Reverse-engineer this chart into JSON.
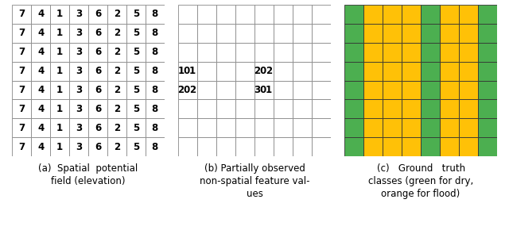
{
  "grid_size": 8,
  "panel_a_values": [
    7,
    4,
    1,
    3,
    6,
    2,
    5,
    8
  ],
  "panel_b_observations": [
    {
      "row": 3,
      "col": 0,
      "val1": "10",
      "val2": "1"
    },
    {
      "row": 4,
      "col": 0,
      "val1": "20",
      "val2": "2"
    },
    {
      "row": 3,
      "col": 4,
      "val1": "20",
      "val2": "2"
    },
    {
      "row": 4,
      "col": 4,
      "val1": "30",
      "val2": "1"
    }
  ],
  "panel_c_colors": [
    [
      0,
      1,
      1,
      1,
      0,
      1,
      1,
      0
    ],
    [
      0,
      1,
      1,
      1,
      0,
      1,
      1,
      0
    ],
    [
      0,
      1,
      1,
      1,
      0,
      1,
      1,
      0
    ],
    [
      0,
      1,
      1,
      1,
      0,
      1,
      1,
      0
    ],
    [
      0,
      1,
      1,
      1,
      0,
      1,
      1,
      0
    ],
    [
      0,
      1,
      1,
      1,
      0,
      1,
      1,
      0
    ],
    [
      0,
      1,
      1,
      1,
      0,
      1,
      1,
      0
    ],
    [
      0,
      1,
      1,
      1,
      0,
      1,
      1,
      0
    ]
  ],
  "color_green": "#4caf50",
  "color_orange": "#FFC107",
  "grid_line_color_ab": "#888888",
  "grid_line_color_c": "#333333",
  "caption_a_line1": "(a)  Spatial  potential",
  "caption_a_line2": "field (elevation)",
  "caption_b_line1": "(b) Partially observed",
  "caption_b_line2": "non-spatial feature val-",
  "caption_b_line3": "ues",
  "caption_c_line1": "(c)   Ground   truth",
  "caption_c_line2": "classes (green for dry,",
  "caption_c_line3": "orange for flood)",
  "bg_color": "#ffffff",
  "font_size_grid": 8.5,
  "font_size_caption": 8.5
}
